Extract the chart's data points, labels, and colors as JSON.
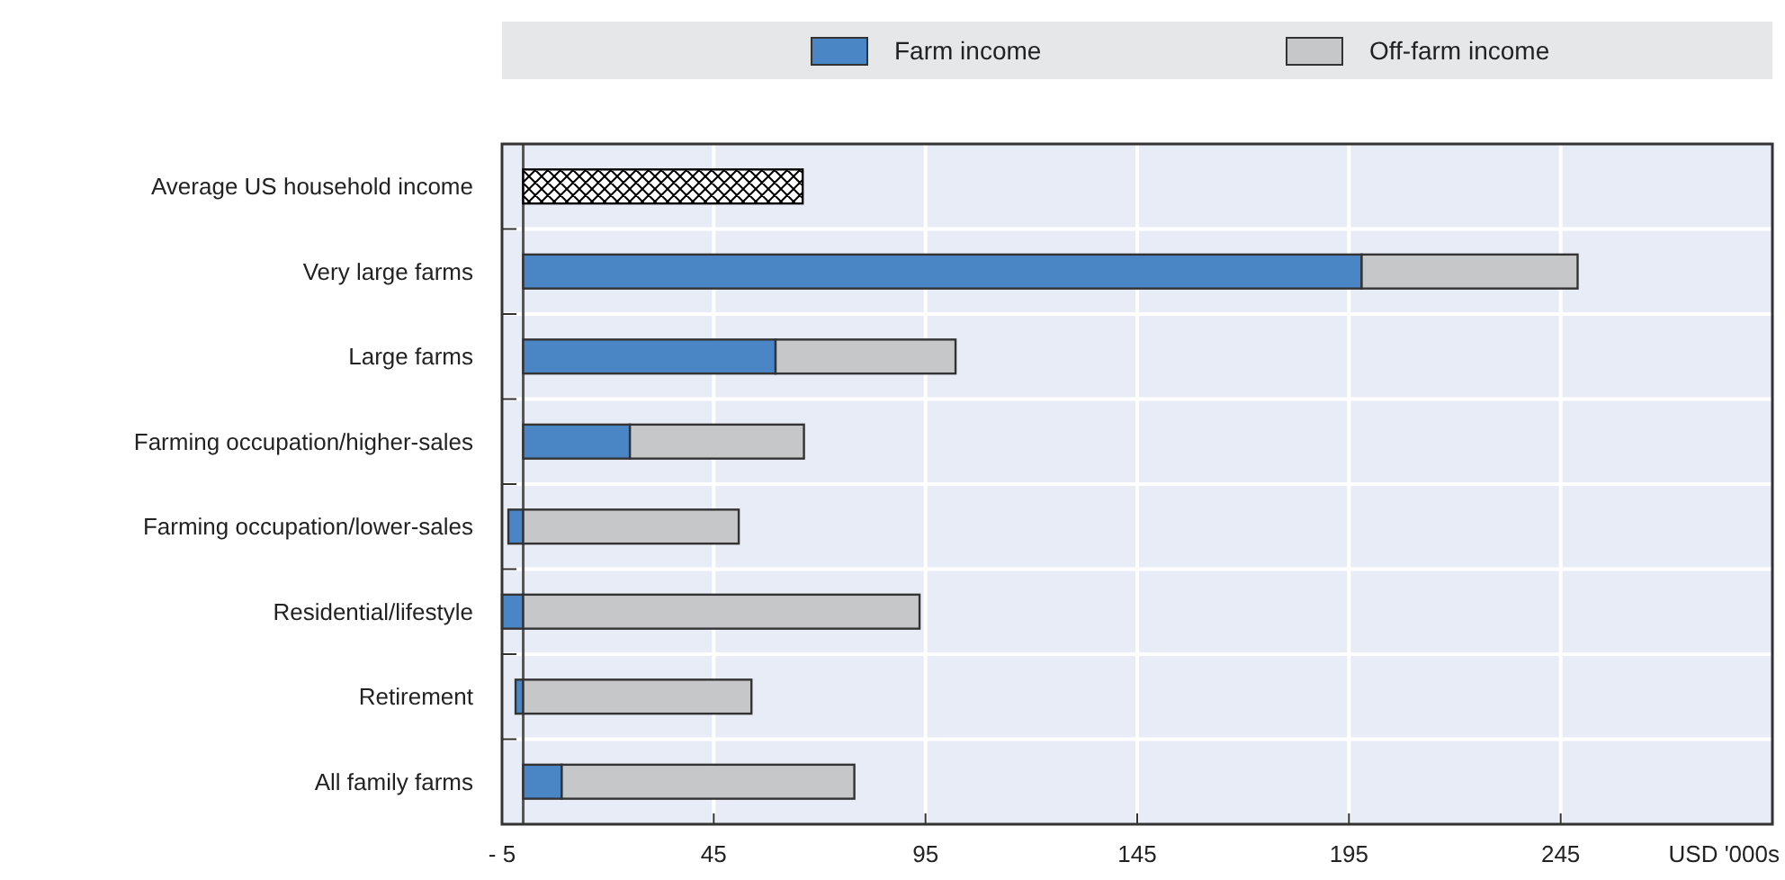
{
  "chart_data": {
    "type": "bar",
    "orientation": "horizontal",
    "stacked": true,
    "categories": [
      "Average US household income",
      "Very large farms",
      "Large farms",
      "Farming occupation/higher-sales",
      "Farming occupation/lower-sales",
      "Residential/lifestyle",
      "Retirement",
      "All family farms"
    ],
    "series": [
      {
        "color": "#000000",
        "values": [
          66,
          null,
          null,
          null,
          null,
          null,
          null,
          null
        ]
      },
      {
        "name": "Farm income",
        "color": "#4a86c6",
        "values": [
          null,
          198,
          59.6,
          25.2,
          -3.5,
          -5,
          -1.8,
          9.1
        ]
      },
      {
        "name": "Off-farm income",
        "color": "#c6c7c9",
        "values": [
          null,
          51,
          42.5,
          41.1,
          50.9,
          93.6,
          53.9,
          69.1
        ]
      }
    ],
    "xlim": [
      -5,
      295
    ],
    "xticks": [
      {
        "value": -5,
        "label": "- 5"
      },
      45,
      95,
      145,
      195,
      245
    ],
    "xlabel": "USD '000s",
    "grid": true,
    "legend": "top"
  }
}
